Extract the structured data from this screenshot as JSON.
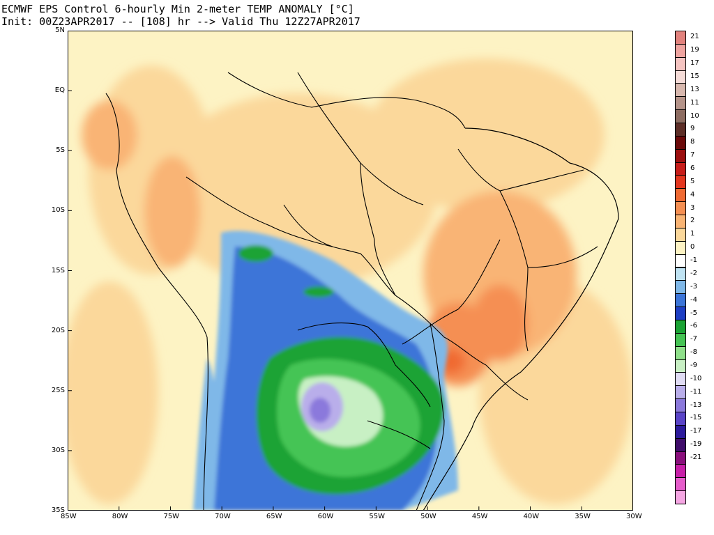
{
  "title": {
    "line1": "ECMWF EPS Control 6-hourly Min 2-meter TEMP ANOMALY [°C]",
    "line2": "Init: 00Z23APR2017 -- [108] hr --> Valid Thu 12Z27APR2017"
  },
  "map": {
    "lon_range": [
      -85,
      -30
    ],
    "lat_range": [
      -35,
      5
    ],
    "lon_ticks": [
      {
        "value": -85,
        "label": "85W"
      },
      {
        "value": -80,
        "label": "80W"
      },
      {
        "value": -75,
        "label": "75W"
      },
      {
        "value": -70,
        "label": "70W"
      },
      {
        "value": -65,
        "label": "65W"
      },
      {
        "value": -60,
        "label": "60W"
      },
      {
        "value": -55,
        "label": "55W"
      },
      {
        "value": -50,
        "label": "50W"
      },
      {
        "value": -45,
        "label": "45W"
      },
      {
        "value": -40,
        "label": "40W"
      },
      {
        "value": -35,
        "label": "35W"
      },
      {
        "value": -30,
        "label": "30W"
      }
    ],
    "lat_ticks": [
      {
        "value": 5,
        "label": "5N"
      },
      {
        "value": 0,
        "label": "EQ"
      },
      {
        "value": -5,
        "label": "5S"
      },
      {
        "value": -10,
        "label": "10S"
      },
      {
        "value": -15,
        "label": "15S"
      },
      {
        "value": -20,
        "label": "20S"
      },
      {
        "value": -25,
        "label": "25S"
      },
      {
        "value": -30,
        "label": "30S"
      },
      {
        "value": -35,
        "label": "35S"
      }
    ]
  },
  "colorbar": {
    "levels": [
      {
        "label": "21",
        "color": "#e2827d"
      },
      {
        "label": "19",
        "color": "#efa4a0"
      },
      {
        "label": "17",
        "color": "#f5c4c1"
      },
      {
        "label": "15",
        "color": "#f5dcd8"
      },
      {
        "label": "13",
        "color": "#d8b8ae"
      },
      {
        "label": "11",
        "color": "#b5948a"
      },
      {
        "label": "10",
        "color": "#8e6d62"
      },
      {
        "label": "9",
        "color": "#5e2f28"
      },
      {
        "label": "8",
        "color": "#6b0a0a"
      },
      {
        "label": "7",
        "color": "#9c0f0f"
      },
      {
        "label": "6",
        "color": "#c81d1a"
      },
      {
        "label": "5",
        "color": "#e4361f"
      },
      {
        "label": "4",
        "color": "#f06a33"
      },
      {
        "label": "3",
        "color": "#f58f52"
      },
      {
        "label": "2",
        "color": "#f9b474"
      },
      {
        "label": "1",
        "color": "#fbd89b"
      },
      {
        "label": "0",
        "color": "#fdf3c4"
      },
      {
        "label": "-1",
        "color": "#ffffff"
      },
      {
        "label": "-2",
        "color": "#bfe3f3"
      },
      {
        "label": "-3",
        "color": "#7fb8e8"
      },
      {
        "label": "-4",
        "color": "#3c75d8"
      },
      {
        "label": "-5",
        "color": "#1e3fc4"
      },
      {
        "label": "-6",
        "color": "#1aa334"
      },
      {
        "label": "-7",
        "color": "#45c454"
      },
      {
        "label": "-8",
        "color": "#8fe08a"
      },
      {
        "label": "-9",
        "color": "#c8f0c4"
      },
      {
        "label": "-10",
        "color": "#e0dcf4"
      },
      {
        "label": "-11",
        "color": "#b9aeea"
      },
      {
        "label": "-13",
        "color": "#8b79dc"
      },
      {
        "label": "-15",
        "color": "#5a44c8"
      },
      {
        "label": "-17",
        "color": "#2c1a9c"
      },
      {
        "label": "-19",
        "color": "#3f0d6a"
      },
      {
        "label": "-21",
        "color": "#8a0f7c"
      },
      {
        "label": "",
        "color": "#c81fa8"
      },
      {
        "label": "",
        "color": "#e65ccb"
      },
      {
        "label": "",
        "color": "#f5a6e3"
      }
    ]
  }
}
